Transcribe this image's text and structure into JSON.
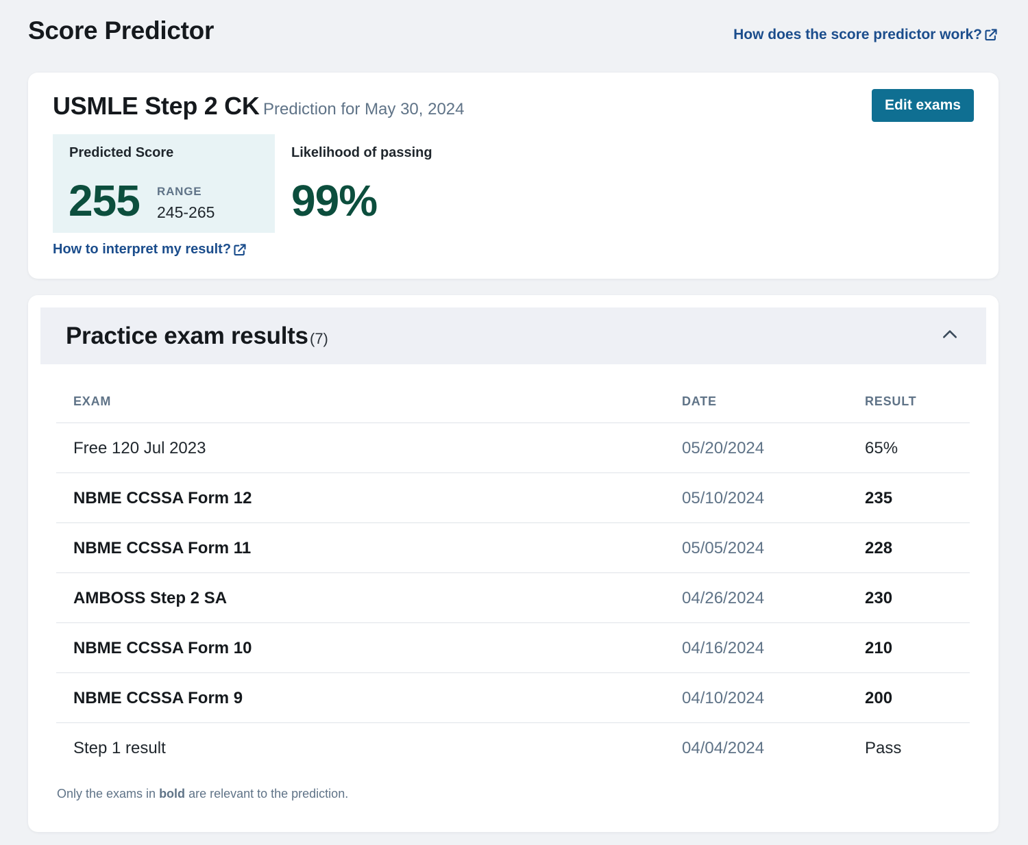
{
  "header": {
    "title": "Score Predictor",
    "help_link": "How does the score predictor work?"
  },
  "prediction": {
    "exam": "USMLE Step 2 CK",
    "date_text": "Prediction for May 30, 2024",
    "edit_button": "Edit exams",
    "predicted_label": "Predicted Score",
    "score": "255",
    "range_label": "RANGE",
    "range": "245-265",
    "likelihood_label": "Likelihood of passing",
    "likelihood": "99%",
    "interpret_link": "How to interpret my result?"
  },
  "results": {
    "title": "Practice exam results",
    "count": "(7)",
    "columns": {
      "exam": "EXAM",
      "date": "DATE",
      "result": "RESULT"
    },
    "rows": [
      {
        "exam": "Free 120 Jul 2023",
        "date": "05/20/2024",
        "result": "65%",
        "bold": false
      },
      {
        "exam": "NBME CCSSA Form 12",
        "date": "05/10/2024",
        "result": "235",
        "bold": true
      },
      {
        "exam": "NBME CCSSA Form 11",
        "date": "05/05/2024",
        "result": "228",
        "bold": true
      },
      {
        "exam": "AMBOSS Step 2 SA",
        "date": "04/26/2024",
        "result": "230",
        "bold": true
      },
      {
        "exam": "NBME CCSSA Form 10",
        "date": "04/16/2024",
        "result": "210",
        "bold": true
      },
      {
        "exam": "NBME CCSSA Form 9",
        "date": "04/10/2024",
        "result": "200",
        "bold": true
      },
      {
        "exam": "Step 1 result",
        "date": "04/04/2024",
        "result": "Pass",
        "bold": false
      }
    ],
    "footnote": {
      "prefix": "Only the exams in ",
      "bold_word": "bold",
      "suffix": " are relevant to the prediction."
    }
  },
  "colors": {
    "accent_button": "#0f6f92",
    "score_green": "#0c4e3d",
    "link_blue": "#1b4d8c",
    "score_box_bg": "#e8f3f5"
  },
  "icons": {
    "external_link": "external-link-icon",
    "collapse": "chevron-up-icon"
  }
}
